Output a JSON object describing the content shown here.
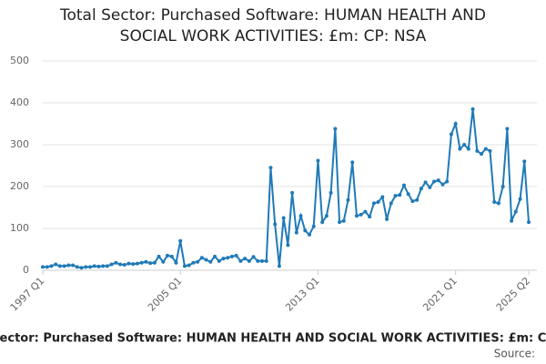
{
  "chart_data": {
    "type": "line",
    "title": "Total Sector: Purchased Software: HUMAN HEALTH AND SOCIAL WORK ACTIVITIES: £m: CP: NSA",
    "source": "Source:",
    "categories": [
      "1997 Q1",
      null,
      null,
      null,
      null,
      null,
      null,
      null,
      null,
      null,
      null,
      null,
      null,
      null,
      null,
      null,
      null,
      null,
      null,
      null,
      null,
      null,
      null,
      null,
      null,
      null,
      null,
      null,
      null,
      null,
      null,
      null,
      "2005 Q1",
      null,
      null,
      null,
      null,
      null,
      null,
      null,
      null,
      null,
      null,
      null,
      null,
      null,
      null,
      null,
      null,
      null,
      null,
      null,
      null,
      null,
      null,
      null,
      null,
      null,
      null,
      null,
      null,
      null,
      null,
      null,
      "2013 Q1",
      null,
      null,
      null,
      null,
      null,
      null,
      null,
      null,
      null,
      null,
      null,
      null,
      null,
      null,
      null,
      null,
      null,
      null,
      null,
      null,
      null,
      null,
      null,
      null,
      null,
      null,
      null,
      null,
      null,
      null,
      null,
      "2021 Q1",
      null,
      null,
      null,
      null,
      null,
      null,
      null,
      null,
      null,
      null,
      null,
      null,
      null,
      null,
      null,
      null,
      "2025 Q2"
    ],
    "series": [
      {
        "name": "Purchased Software",
        "color": "#1f7ab8",
        "values": [
          8,
          8,
          10,
          14,
          10,
          10,
          12,
          12,
          8,
          6,
          8,
          8,
          10,
          9,
          10,
          10,
          14,
          18,
          14,
          13,
          16,
          15,
          16,
          18,
          20,
          17,
          18,
          33,
          20,
          35,
          33,
          18,
          70,
          10,
          12,
          18,
          20,
          30,
          25,
          20,
          33,
          22,
          28,
          30,
          33,
          35,
          22,
          28,
          22,
          32,
          22,
          22,
          22,
          245,
          110,
          10,
          125,
          60,
          185,
          90,
          130,
          95,
          85,
          105,
          262,
          115,
          130,
          185,
          338,
          115,
          118,
          168,
          258,
          130,
          133,
          140,
          128,
          160,
          163,
          175,
          122,
          160,
          178,
          180,
          203,
          182,
          165,
          168,
          195,
          210,
          198,
          212,
          215,
          205,
          212,
          325,
          350,
          290,
          300,
          290,
          385,
          285,
          278,
          290,
          285,
          163,
          160,
          200,
          338,
          118,
          140,
          170,
          260,
          115
        ]
      }
    ],
    "ylim": [
      0,
      500
    ],
    "yticks": [
      0,
      100,
      200,
      300,
      400,
      500
    ],
    "grid": true
  }
}
